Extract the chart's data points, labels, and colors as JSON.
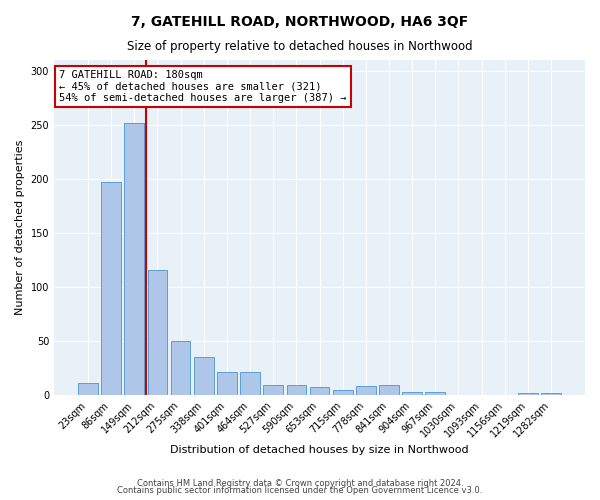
{
  "title1": "7, GATEHILL ROAD, NORTHWOOD, HA6 3QF",
  "title2": "Size of property relative to detached houses in Northwood",
  "xlabel": "Distribution of detached houses by size in Northwood",
  "ylabel": "Number of detached properties",
  "categories": [
    "23sqm",
    "86sqm",
    "149sqm",
    "212sqm",
    "275sqm",
    "338sqm",
    "401sqm",
    "464sqm",
    "527sqm",
    "590sqm",
    "653sqm",
    "715sqm",
    "778sqm",
    "841sqm",
    "904sqm",
    "967sqm",
    "1030sqm",
    "1093sqm",
    "1156sqm",
    "1219sqm",
    "1282sqm"
  ],
  "values": [
    11,
    197,
    252,
    116,
    50,
    35,
    22,
    22,
    10,
    10,
    8,
    5,
    9,
    10,
    3,
    3,
    0,
    0,
    0,
    2,
    2
  ],
  "bar_color": "#aec6e8",
  "bar_edge_color": "#5a9fd4",
  "vline_x": 2.5,
  "vline_color": "#cc0000",
  "annotation_line1": "7 GATEHILL ROAD: 180sqm",
  "annotation_line2": "← 45% of detached houses are smaller (321)",
  "annotation_line3": "54% of semi-detached houses are larger (387) →",
  "annotation_box_color": "#ffffff",
  "annotation_box_edgecolor": "#cc0000",
  "ylim": [
    0,
    310
  ],
  "yticks": [
    0,
    50,
    100,
    150,
    200,
    250,
    300
  ],
  "footer1": "Contains HM Land Registry data © Crown copyright and database right 2024.",
  "footer2": "Contains public sector information licensed under the Open Government Licence v3.0.",
  "bg_color": "#e8f0f8"
}
